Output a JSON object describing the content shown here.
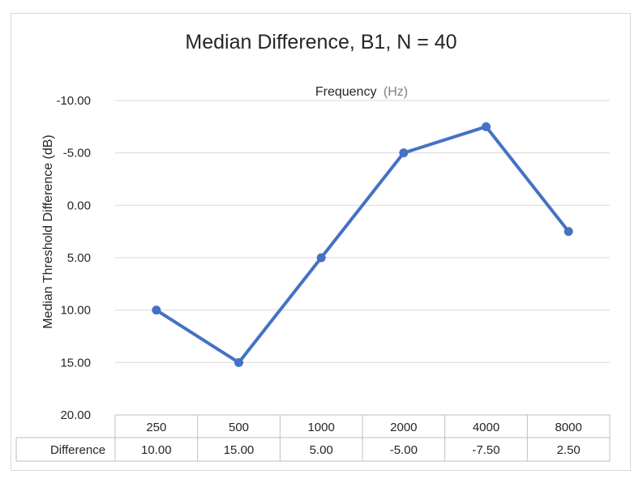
{
  "chart_data": {
    "type": "line",
    "title": "Median Difference, B1, N = 40",
    "xlabel_main": "Frequency",
    "xlabel_unit": "(Hz)",
    "ylabel": "Median Threshold Difference (dB)",
    "categories": [
      "250",
      "500",
      "1000",
      "2000",
      "4000",
      "8000"
    ],
    "series": [
      {
        "name": "Difference",
        "values": [
          10.0,
          15.0,
          5.0,
          -5.0,
          -7.5,
          2.5
        ],
        "labels": [
          "10.00",
          "15.00",
          "5.00",
          "-5.00",
          "-7.50",
          "2.50"
        ],
        "color": "#4472C4"
      }
    ],
    "yticks": [
      "-10.00",
      "-5.00",
      "0.00",
      "5.00",
      "10.00",
      "15.00",
      "20.00"
    ],
    "ylim": [
      -10,
      20
    ],
    "y_reversed": true,
    "grid": true,
    "data_table": true,
    "colors": {
      "line": "#4472C4",
      "grid": "#D9D9D9",
      "border": "#BFBFBF"
    }
  }
}
